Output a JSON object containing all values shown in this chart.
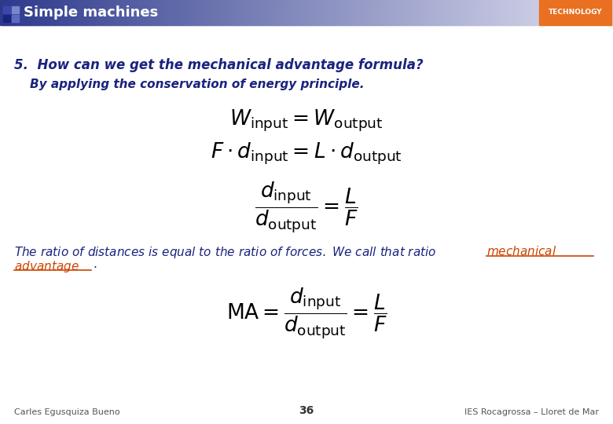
{
  "title": "Simple machines",
  "technology_label": "TECHNOLOGY",
  "header_orange": "#e87020",
  "bg_color": "#ffffff",
  "question": "5.  How can we get the mechanical advantage formula?",
  "answer": "By applying the conservation of energy principle.",
  "text_color_dark": "#1a237e",
  "footer_left": "Carles Egusquiza Bueno",
  "footer_center": "36",
  "footer_right": "IES Rocagrossa – Lloret de Mar",
  "italic_text": "The ratio of distances is equal to the ratio of forces. We call that ratio ",
  "underline_text": "mechanical advantage",
  "orange_link": "#cc4400"
}
